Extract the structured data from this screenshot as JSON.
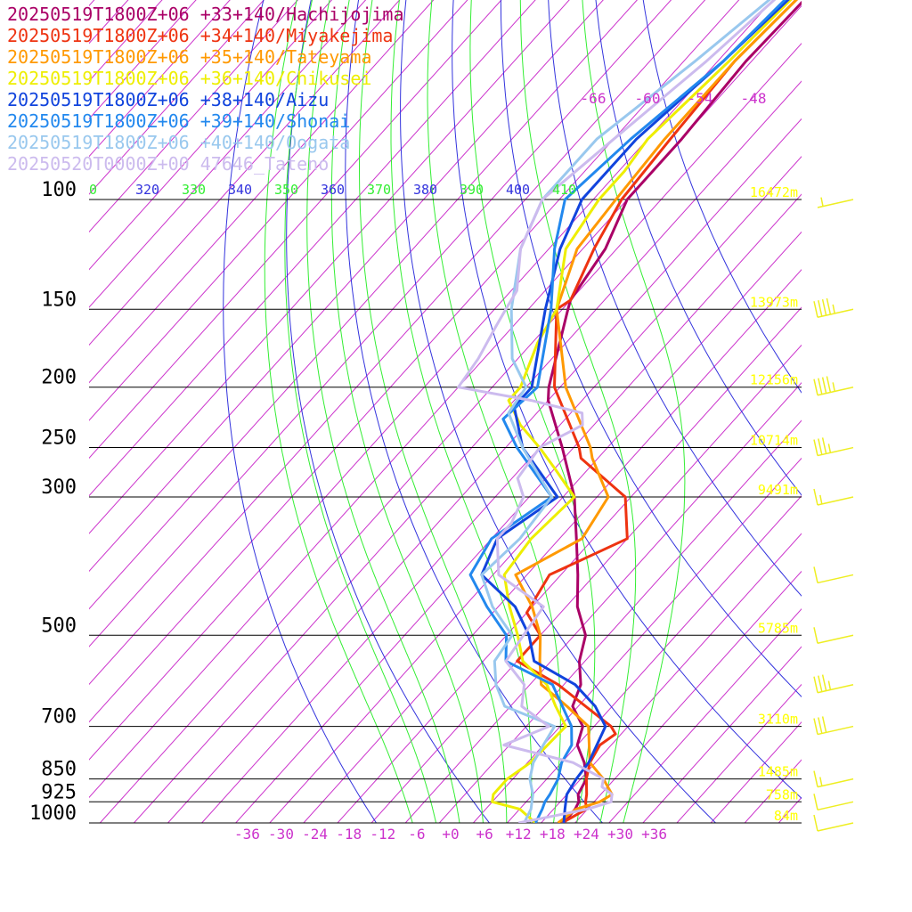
{
  "colors": {
    "background": "#ffffff",
    "isobar": "#000000",
    "isotherm": "#cc33cc",
    "dry_adiabat": "#3333dd",
    "moist_adiabat": "#33ee33",
    "height_label": "#ffff00",
    "wind_barb": "#eeee22"
  },
  "chart_data": {
    "type": "line",
    "title": "",
    "xlabel": "",
    "ylabel": "",
    "grid": true,
    "log_y": true,
    "legend_position": "top-left",
    "xlim": [
      -40,
      40
    ],
    "ylim": [
      1000,
      100
    ],
    "pressure_ticks": [
      {
        "p": 100,
        "label": "100"
      },
      {
        "p": 150,
        "label": "150"
      },
      {
        "p": 200,
        "label": "200"
      },
      {
        "p": 250,
        "label": "250"
      },
      {
        "p": 300,
        "label": "300"
      },
      {
        "p": 500,
        "label": "500"
      },
      {
        "p": 700,
        "label": "700"
      },
      {
        "p": 850,
        "label": "850"
      },
      {
        "p": 925,
        "label": "925"
      },
      {
        "p": 1000,
        "label": "1000"
      }
    ],
    "temperature_ticks": [
      {
        "t": -36,
        "label": "-36"
      },
      {
        "t": -30,
        "label": "-30"
      },
      {
        "t": -24,
        "label": "-24"
      },
      {
        "t": -18,
        "label": "-18"
      },
      {
        "t": -12,
        "label": "-12"
      },
      {
        "t": -6,
        "label": "-6"
      },
      {
        "t": 0,
        "label": "+0"
      },
      {
        "t": 6,
        "label": "+6"
      },
      {
        "t": 12,
        "label": "+12"
      },
      {
        "t": 18,
        "label": "+18"
      },
      {
        "t": 24,
        "label": "+24"
      },
      {
        "t": 30,
        "label": "+30"
      },
      {
        "t": 36,
        "label": "+36"
      }
    ],
    "upper_temperature_labels": [
      "-66",
      "-60",
      "-54",
      "-48"
    ],
    "theta_labels": [
      {
        "text": "0",
        "group": "moist"
      },
      {
        "text": "320",
        "group": "dry"
      },
      {
        "text": "330",
        "group": "moist"
      },
      {
        "text": "340",
        "group": "dry"
      },
      {
        "text": "350",
        "group": "moist"
      },
      {
        "text": "360",
        "group": "dry"
      },
      {
        "text": "370",
        "group": "moist"
      },
      {
        "text": "380",
        "group": "dry"
      },
      {
        "text": "390",
        "group": "moist"
      },
      {
        "text": "400",
        "group": "dry"
      },
      {
        "text": "410",
        "group": "moist"
      }
    ],
    "heights": [
      {
        "p": 100,
        "label": "16472m"
      },
      {
        "p": 150,
        "label": "13973m"
      },
      {
        "p": 200,
        "label": "12156m"
      },
      {
        "p": 250,
        "label": "10714m"
      },
      {
        "p": 300,
        "label": "9491m"
      },
      {
        "p": 500,
        "label": "5785m"
      },
      {
        "p": 700,
        "label": "3110m"
      },
      {
        "p": 850,
        "label": "1485m"
      },
      {
        "p": 925,
        "label": "758m"
      },
      {
        "p": 1000,
        "label": "84m"
      }
    ],
    "wind_barbs": [
      {
        "p": 100,
        "flags": 0,
        "full": 0,
        "half": 1
      },
      {
        "p": 150,
        "flags": 0,
        "full": 4,
        "half": 1
      },
      {
        "p": 200,
        "flags": 0,
        "full": 4,
        "half": 1
      },
      {
        "p": 250,
        "flags": 0,
        "full": 3,
        "half": 1
      },
      {
        "p": 300,
        "flags": 0,
        "full": 1,
        "half": 1
      },
      {
        "p": 400,
        "flags": 0,
        "full": 1,
        "half": 0
      },
      {
        "p": 500,
        "flags": 0,
        "full": 1,
        "half": 0
      },
      {
        "p": 600,
        "flags": 0,
        "full": 3,
        "half": 1
      },
      {
        "p": 700,
        "flags": 0,
        "full": 3,
        "half": 0
      },
      {
        "p": 850,
        "flags": 0,
        "full": 1,
        "half": 1
      },
      {
        "p": 925,
        "flags": 0,
        "full": 1,
        "half": 0
      },
      {
        "p": 1000,
        "flags": 0,
        "full": 1,
        "half": 0
      }
    ],
    "series": [
      {
        "name": "20250519T1800Z+06 +33+140/Hachijojima",
        "color": "#aa0066",
        "points": [
          [
            1000,
            20
          ],
          [
            950,
            19.8
          ],
          [
            925,
            19.3
          ],
          [
            900,
            18
          ],
          [
            850,
            17
          ],
          [
            800,
            14
          ],
          [
            750,
            10
          ],
          [
            700,
            8
          ],
          [
            650,
            3
          ],
          [
            600,
            1
          ],
          [
            550,
            -3
          ],
          [
            500,
            -6
          ],
          [
            450,
            -12
          ],
          [
            400,
            -17
          ],
          [
            350,
            -23
          ],
          [
            300,
            -30
          ],
          [
            250,
            -40
          ],
          [
            210,
            -50
          ],
          [
            200,
            -52
          ],
          [
            150,
            -61
          ],
          [
            145,
            -62
          ],
          [
            120,
            -64
          ],
          [
            100,
            -68
          ],
          [
            80,
            -68
          ],
          [
            60,
            -69
          ],
          [
            40,
            -68
          ],
          [
            30,
            -65
          ]
        ]
      },
      {
        "name": "20250519T1800Z+06 +34+140/Miyakejima",
        "color": "#ee3311",
        "points": [
          [
            1000,
            19.7
          ],
          [
            950,
            21.8
          ],
          [
            925,
            20.5
          ],
          [
            900,
            19.5
          ],
          [
            850,
            17
          ],
          [
            800,
            15
          ],
          [
            750,
            14
          ],
          [
            720,
            15
          ],
          [
            700,
            13
          ],
          [
            600,
            -3
          ],
          [
            550,
            -14
          ],
          [
            500,
            -14
          ],
          [
            460,
            -20
          ],
          [
            400,
            -22
          ],
          [
            350,
            -14
          ],
          [
            300,
            -21
          ],
          [
            260,
            -35
          ],
          [
            250,
            -37
          ],
          [
            200,
            -51
          ],
          [
            150,
            -63
          ],
          [
            145,
            -62
          ],
          [
            120,
            -66
          ],
          [
            100,
            -69
          ],
          [
            80,
            -70
          ],
          [
            60,
            -71
          ],
          [
            40,
            -69
          ],
          [
            30,
            -66
          ]
        ]
      },
      {
        "name": "20250519T1800Z+06 +35+140/Tateyama",
        "color": "#ff9900",
        "points": [
          [
            1000,
            19
          ],
          [
            950,
            20
          ],
          [
            925,
            23
          ],
          [
            900,
            24
          ],
          [
            850,
            20
          ],
          [
            800,
            15
          ],
          [
            700,
            9
          ],
          [
            650,
            2
          ],
          [
            600,
            -6
          ],
          [
            550,
            -10
          ],
          [
            500,
            -14
          ],
          [
            450,
            -20
          ],
          [
            400,
            -28
          ],
          [
            350,
            -22
          ],
          [
            300,
            -24
          ],
          [
            260,
            -33
          ],
          [
            250,
            -35
          ],
          [
            200,
            -49
          ],
          [
            150,
            -63
          ],
          [
            120,
            -69
          ],
          [
            100,
            -70
          ],
          [
            80,
            -71
          ],
          [
            60,
            -71
          ],
          [
            40,
            -69
          ],
          [
            30,
            -65
          ]
        ]
      },
      {
        "name": "20250519T1800Z+06 +36+140/Chikusei",
        "color": "#eeee00",
        "points": [
          [
            1000,
            15
          ],
          [
            950,
            10
          ],
          [
            925,
            4
          ],
          [
            900,
            3
          ],
          [
            850,
            3
          ],
          [
            800,
            4.5
          ],
          [
            700,
            5
          ],
          [
            650,
            0
          ],
          [
            600,
            -5
          ],
          [
            550,
            -13
          ],
          [
            500,
            -18
          ],
          [
            450,
            -24
          ],
          [
            400,
            -30
          ],
          [
            350,
            -31
          ],
          [
            300,
            -30
          ],
          [
            270,
            -38
          ],
          [
            250,
            -44
          ],
          [
            230,
            -51
          ],
          [
            210,
            -57
          ],
          [
            200,
            -57
          ],
          [
            170,
            -61
          ],
          [
            150,
            -63
          ],
          [
            120,
            -71
          ],
          [
            100,
            -73
          ],
          [
            90,
            -73
          ],
          [
            80,
            -74
          ],
          [
            60,
            -72
          ],
          [
            40,
            -70
          ],
          [
            30,
            -66
          ]
        ]
      },
      {
        "name": "20250519T1800Z+06 +38+140/Aizu",
        "color": "#1144dd",
        "points": [
          [
            1000,
            20
          ],
          [
            950,
            18
          ],
          [
            925,
            17
          ],
          [
            900,
            16
          ],
          [
            850,
            15.2
          ],
          [
            800,
            14.8
          ],
          [
            700,
            12
          ],
          [
            650,
            7
          ],
          [
            600,
            0
          ],
          [
            550,
            -11
          ],
          [
            500,
            -16
          ],
          [
            450,
            -23
          ],
          [
            400,
            -34
          ],
          [
            350,
            -37
          ],
          [
            300,
            -33
          ],
          [
            250,
            -47
          ],
          [
            215,
            -55
          ],
          [
            200,
            -55
          ],
          [
            150,
            -65
          ],
          [
            120,
            -72
          ],
          [
            100,
            -76
          ],
          [
            90,
            -76
          ],
          [
            80,
            -76
          ],
          [
            60,
            -73
          ],
          [
            40,
            -70
          ],
          [
            30,
            -66
          ]
        ]
      },
      {
        "name": "20250519T1800Z+06 +39+140/Shonai",
        "color": "#2288ee",
        "points": [
          [
            1000,
            15
          ],
          [
            950,
            14
          ],
          [
            925,
            13.3
          ],
          [
            900,
            13
          ],
          [
            850,
            12
          ],
          [
            800,
            10
          ],
          [
            750,
            9
          ],
          [
            700,
            6
          ],
          [
            600,
            -4
          ],
          [
            550,
            -16
          ],
          [
            500,
            -20
          ],
          [
            450,
            -28
          ],
          [
            400,
            -36
          ],
          [
            350,
            -38
          ],
          [
            300,
            -34
          ],
          [
            250,
            -48
          ],
          [
            225,
            -55
          ],
          [
            200,
            -54
          ],
          [
            150,
            -64
          ],
          [
            120,
            -73
          ],
          [
            100,
            -79
          ],
          [
            80,
            -77
          ],
          [
            60,
            -73
          ],
          [
            40,
            -71
          ],
          [
            30,
            -67
          ]
        ]
      },
      {
        "name": "20250519T1800Z+06 +40+140/Oogata",
        "color": "#99c8ee",
        "points": [
          [
            1000,
            13
          ],
          [
            950,
            12
          ],
          [
            925,
            11
          ],
          [
            900,
            10
          ],
          [
            850,
            7
          ],
          [
            800,
            5
          ],
          [
            750,
            4
          ],
          [
            700,
            3
          ],
          [
            650,
            -9
          ],
          [
            600,
            -14
          ],
          [
            550,
            -18
          ],
          [
            500,
            -19
          ],
          [
            450,
            -27
          ],
          [
            400,
            -34
          ],
          [
            350,
            -33
          ],
          [
            300,
            -34
          ],
          [
            250,
            -47
          ],
          [
            220,
            -55
          ],
          [
            200,
            -56
          ],
          [
            180,
            -63
          ],
          [
            150,
            -71
          ],
          [
            120,
            -79
          ],
          [
            100,
            -83
          ],
          [
            80,
            -83
          ],
          [
            60,
            -78
          ],
          [
            40,
            -72
          ],
          [
            30,
            -68
          ]
        ]
      },
      {
        "name": "20250520T0000Z+00 47646_Tateno",
        "color": "#ccbbee",
        "points": [
          [
            1000,
            12
          ],
          [
            975,
            17
          ],
          [
            950,
            22
          ],
          [
            925,
            25
          ],
          [
            900,
            24
          ],
          [
            875,
            21
          ],
          [
            850,
            20
          ],
          [
            800,
            12
          ],
          [
            750,
            -3
          ],
          [
            700,
            2
          ],
          [
            650,
            -6
          ],
          [
            600,
            -9
          ],
          [
            550,
            -16
          ],
          [
            500,
            -17
          ],
          [
            450,
            -18
          ],
          [
            400,
            -31
          ],
          [
            350,
            -37
          ],
          [
            330,
            -37
          ],
          [
            300,
            -39
          ],
          [
            280,
            -43
          ],
          [
            250,
            -44
          ],
          [
            230,
            -40
          ],
          [
            220,
            -42
          ],
          [
            210,
            -53
          ],
          [
            200,
            -68
          ],
          [
            180,
            -69
          ],
          [
            160,
            -71
          ],
          [
            150,
            -72
          ],
          [
            140,
            -73
          ],
          [
            120,
            -79
          ],
          [
            100,
            -83
          ],
          [
            80,
            -80
          ],
          [
            60,
            -76
          ],
          [
            40,
            -72
          ],
          [
            30,
            -68
          ]
        ]
      }
    ]
  }
}
